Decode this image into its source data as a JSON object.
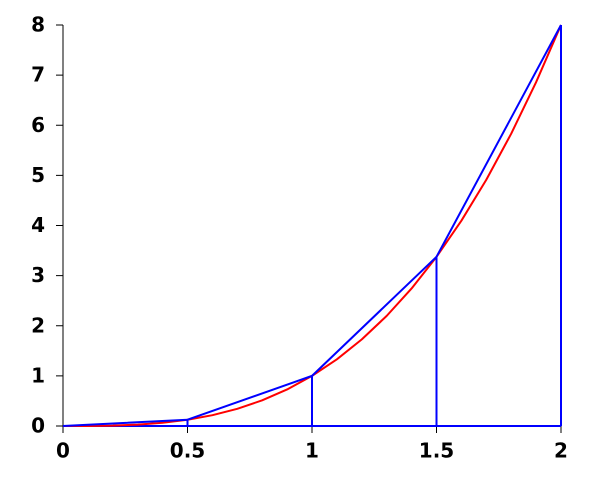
{
  "chart_data": {
    "type": "line",
    "xlim": [
      0,
      2
    ],
    "ylim": [
      0,
      8
    ],
    "xticks": [
      0,
      0.5,
      1,
      1.5,
      2
    ],
    "yticks": [
      0,
      1,
      2,
      3,
      4,
      5,
      6,
      7,
      8
    ],
    "series": [
      {
        "color": "#ff0000",
        "x": [
          0,
          0.1,
          0.2,
          0.3,
          0.4,
          0.5,
          0.6,
          0.7,
          0.8,
          0.9,
          1,
          1.1,
          1.2,
          1.3,
          1.4,
          1.5,
          1.6,
          1.7,
          1.8,
          1.9,
          2
        ],
        "values": [
          0,
          0.001,
          0.008,
          0.027,
          0.064,
          0.125,
          0.216,
          0.343,
          0.512,
          0.729,
          1,
          1.331,
          1.728,
          2.197,
          2.744,
          3.375,
          4.096,
          4.913,
          5.832,
          6.859,
          8
        ]
      },
      {
        "color": "#0000ff",
        "x": [
          0,
          0.5,
          1,
          1.5,
          2
        ],
        "values": [
          0,
          0.125,
          1,
          3.375,
          8
        ],
        "drop_lines": true
      }
    ]
  }
}
